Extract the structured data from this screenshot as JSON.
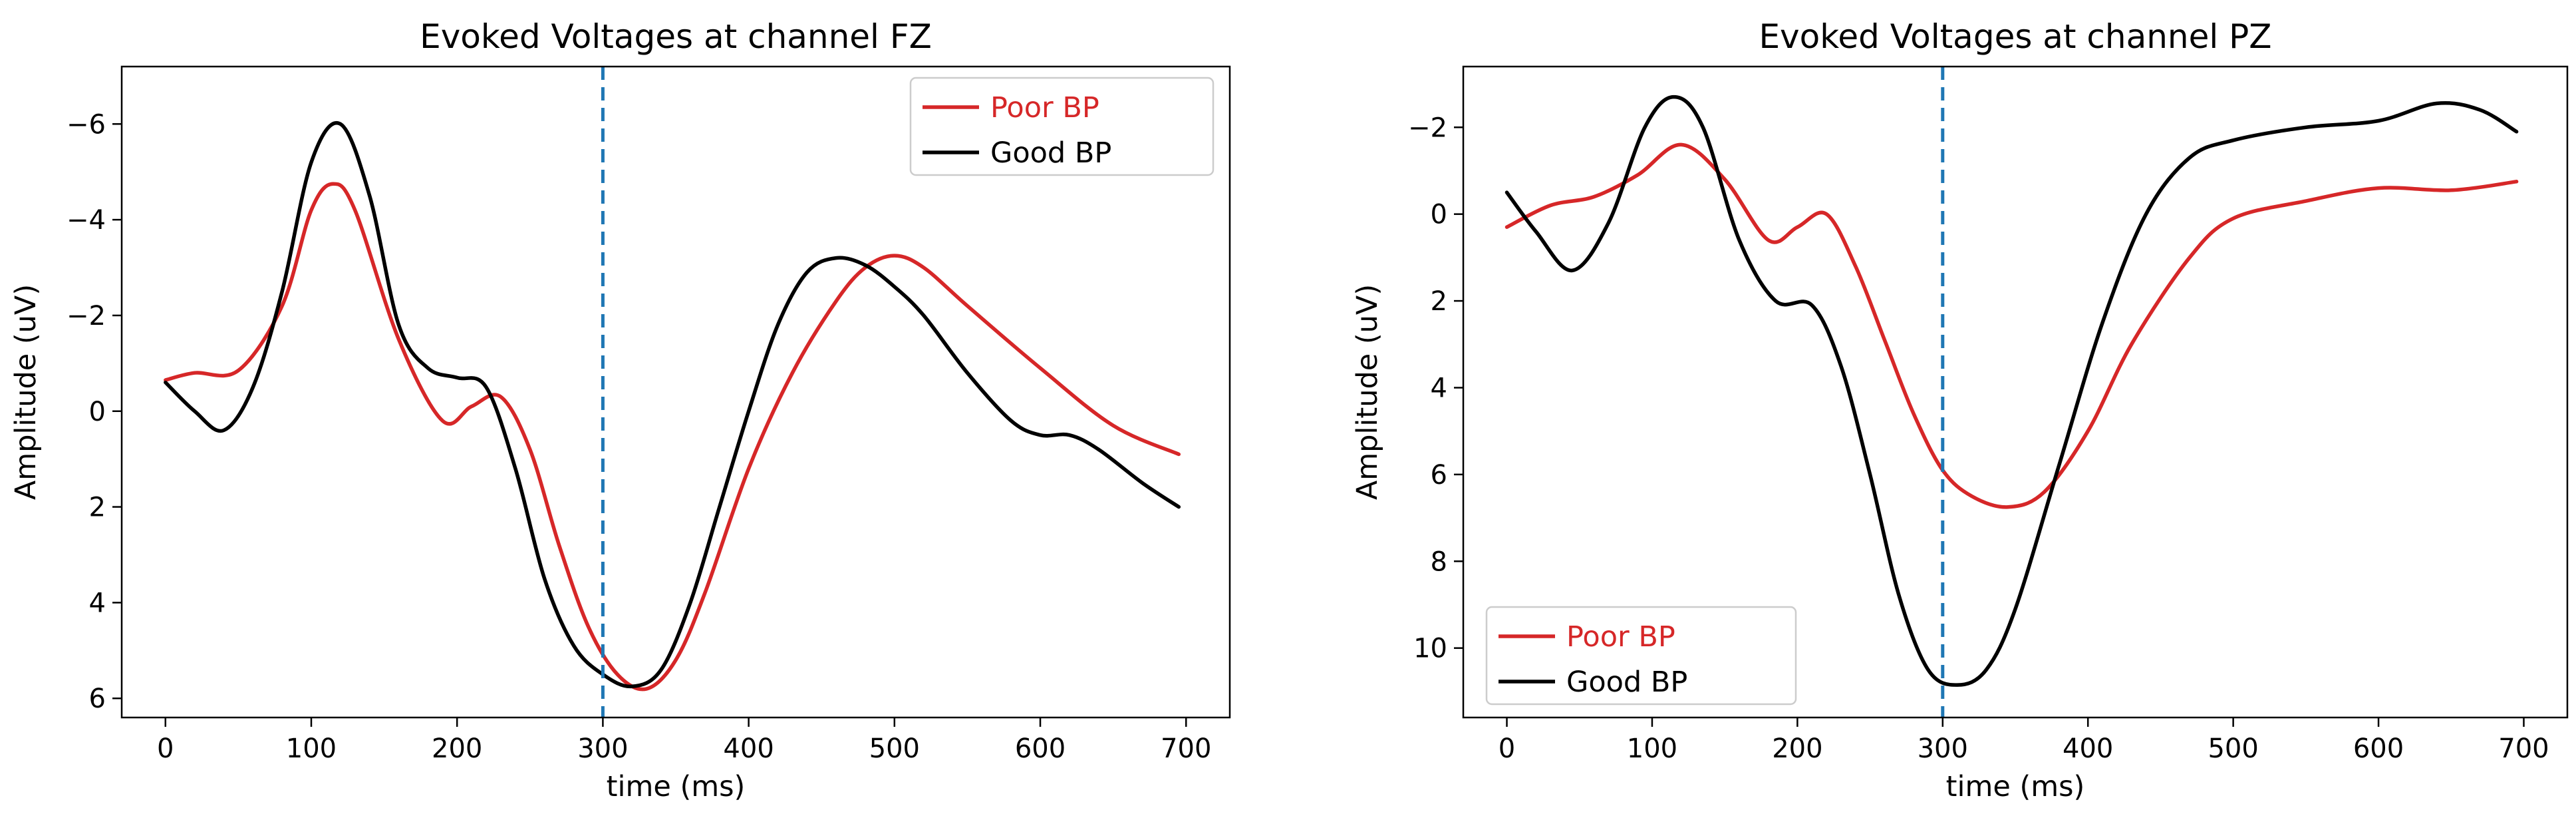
{
  "chart_data": [
    {
      "type": "line",
      "title": "Evoked Voltages at channel FZ",
      "xlabel": "time (ms)",
      "ylabel": "Amplitude (uV)",
      "xlim": [
        -30,
        730
      ],
      "ylim": [
        -7.2,
        6.4
      ],
      "y_inverted": true,
      "xticks": [
        0,
        100,
        200,
        300,
        400,
        500,
        600,
        700
      ],
      "yticks": [
        -6,
        -4,
        -2,
        0,
        2,
        4,
        6
      ],
      "vline": {
        "x": 300,
        "color": "#1f77b4",
        "style": "dashed"
      },
      "legend": {
        "position": "top-right",
        "entries": [
          "Poor BP",
          "Good BP"
        ]
      },
      "series": [
        {
          "name": "Poor BP",
          "color": "#d62728",
          "x": [
            0,
            20,
            50,
            80,
            100,
            115,
            130,
            160,
            190,
            210,
            230,
            250,
            270,
            290,
            310,
            330,
            350,
            370,
            400,
            430,
            460,
            480,
            500,
            520,
            550,
            600,
            650,
            695
          ],
          "y": [
            -0.65,
            -0.8,
            -0.85,
            -2.2,
            -4.2,
            -4.75,
            -4.2,
            -1.5,
            0.2,
            -0.1,
            -0.3,
            0.8,
            2.8,
            4.5,
            5.5,
            5.8,
            5.2,
            3.8,
            1.2,
            -0.8,
            -2.3,
            -3.0,
            -3.25,
            -3.0,
            -2.2,
            -0.9,
            0.3,
            0.9
          ]
        },
        {
          "name": "Good BP",
          "color": "#000000",
          "x": [
            0,
            20,
            40,
            60,
            80,
            100,
            120,
            140,
            160,
            180,
            200,
            220,
            240,
            260,
            280,
            300,
            320,
            340,
            360,
            380,
            400,
            420,
            440,
            460,
            480,
            500,
            520,
            550,
            580,
            600,
            620,
            640,
            670,
            695
          ],
          "y": [
            -0.6,
            0.0,
            0.4,
            -0.5,
            -2.5,
            -5.2,
            -6.0,
            -4.5,
            -1.8,
            -0.9,
            -0.7,
            -0.5,
            1.2,
            3.5,
            4.9,
            5.5,
            5.75,
            5.4,
            4.0,
            2.0,
            0.0,
            -1.8,
            -2.9,
            -3.2,
            -3.05,
            -2.6,
            -2.0,
            -0.8,
            0.2,
            0.5,
            0.5,
            0.8,
            1.5,
            2.0
          ]
        }
      ]
    },
    {
      "type": "line",
      "title": "Evoked Voltages at channel PZ",
      "xlabel": "time (ms)",
      "ylabel": "Amplitude (uV)",
      "xlim": [
        -30,
        730
      ],
      "ylim": [
        -3.4,
        11.6
      ],
      "y_inverted": true,
      "xticks": [
        0,
        100,
        200,
        300,
        400,
        500,
        600,
        700
      ],
      "yticks": [
        -2,
        0,
        2,
        4,
        6,
        8,
        10
      ],
      "vline": {
        "x": 300,
        "color": "#1f77b4",
        "style": "dashed"
      },
      "legend": {
        "position": "bottom-left",
        "entries": [
          "Poor BP",
          "Good BP"
        ]
      },
      "series": [
        {
          "name": "Poor BP",
          "color": "#d62728",
          "x": [
            0,
            30,
            60,
            90,
            120,
            150,
            180,
            200,
            220,
            240,
            260,
            280,
            300,
            320,
            345,
            370,
            400,
            430,
            470,
            500,
            550,
            600,
            650,
            695
          ],
          "y": [
            0.3,
            -0.2,
            -0.4,
            -0.9,
            -1.6,
            -0.8,
            0.6,
            0.3,
            0.0,
            1.2,
            2.9,
            4.6,
            5.9,
            6.5,
            6.75,
            6.4,
            5.0,
            3.0,
            1.0,
            0.1,
            -0.3,
            -0.6,
            -0.55,
            -0.75
          ]
        },
        {
          "name": "Good BP",
          "color": "#000000",
          "x": [
            0,
            20,
            45,
            70,
            95,
            115,
            135,
            160,
            185,
            210,
            230,
            250,
            270,
            290,
            310,
            330,
            350,
            380,
            410,
            440,
            470,
            500,
            550,
            600,
            640,
            670,
            695
          ],
          "y": [
            -0.5,
            0.4,
            1.3,
            0.2,
            -2.0,
            -2.7,
            -2.0,
            0.6,
            2.0,
            2.1,
            3.5,
            6.0,
            8.8,
            10.5,
            10.85,
            10.5,
            9.1,
            5.8,
            2.5,
            0.0,
            -1.3,
            -1.7,
            -2.0,
            -2.15,
            -2.55,
            -2.4,
            -1.9
          ]
        }
      ]
    }
  ]
}
